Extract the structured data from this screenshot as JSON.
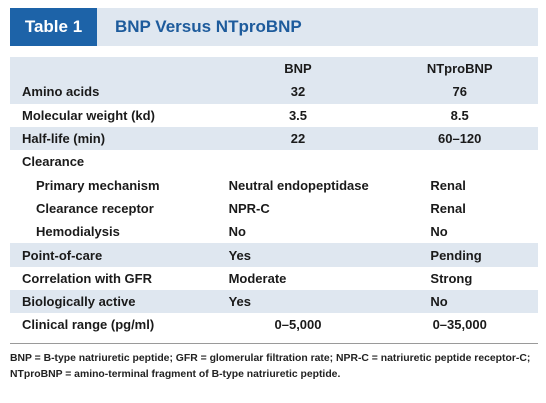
{
  "title": {
    "badge": "Table 1",
    "text": "BNP Versus NTproBNP"
  },
  "table": {
    "columns": [
      "",
      "BNP",
      "NTproBNP"
    ],
    "rows": [
      {
        "label": "Amino acids",
        "bnp": "32",
        "ntprobnp": "76"
      },
      {
        "label": "Molecular weight (kd)",
        "bnp": "3.5",
        "ntprobnp": "8.5"
      },
      {
        "label": "Half-life (min)",
        "bnp": "22",
        "ntprobnp": "60–120"
      },
      {
        "label": "Clearance",
        "bnp": "",
        "ntprobnp": ""
      },
      {
        "label": "Primary mechanism",
        "bnp": "Neutral endopeptidase",
        "ntprobnp": "Renal"
      },
      {
        "label": "Clearance receptor",
        "bnp": "NPR-C",
        "ntprobnp": "Renal"
      },
      {
        "label": "Hemodialysis",
        "bnp": "No",
        "ntprobnp": "No"
      },
      {
        "label": "Point-of-care",
        "bnp": "Yes",
        "ntprobnp": "Pending"
      },
      {
        "label": "Correlation with GFR",
        "bnp": "Moderate",
        "ntprobnp": "Strong"
      },
      {
        "label": "Biologically active",
        "bnp": "Yes",
        "ntprobnp": "No"
      },
      {
        "label": "Clinical range (pg/ml)",
        "bnp": "0–5,000",
        "ntprobnp": "0–35,000"
      }
    ]
  },
  "footnote": "BNP = B-type natriuretic peptide; GFR = glomerular filtration rate; NPR-C = natriuretic peptide receptor-C; NTproBNP = amino-terminal fragment of B-type natriuretic peptide.",
  "colors": {
    "badge_bg": "#1d63a8",
    "title_color": "#1d5b9c",
    "shade": "#dfe7f0"
  }
}
